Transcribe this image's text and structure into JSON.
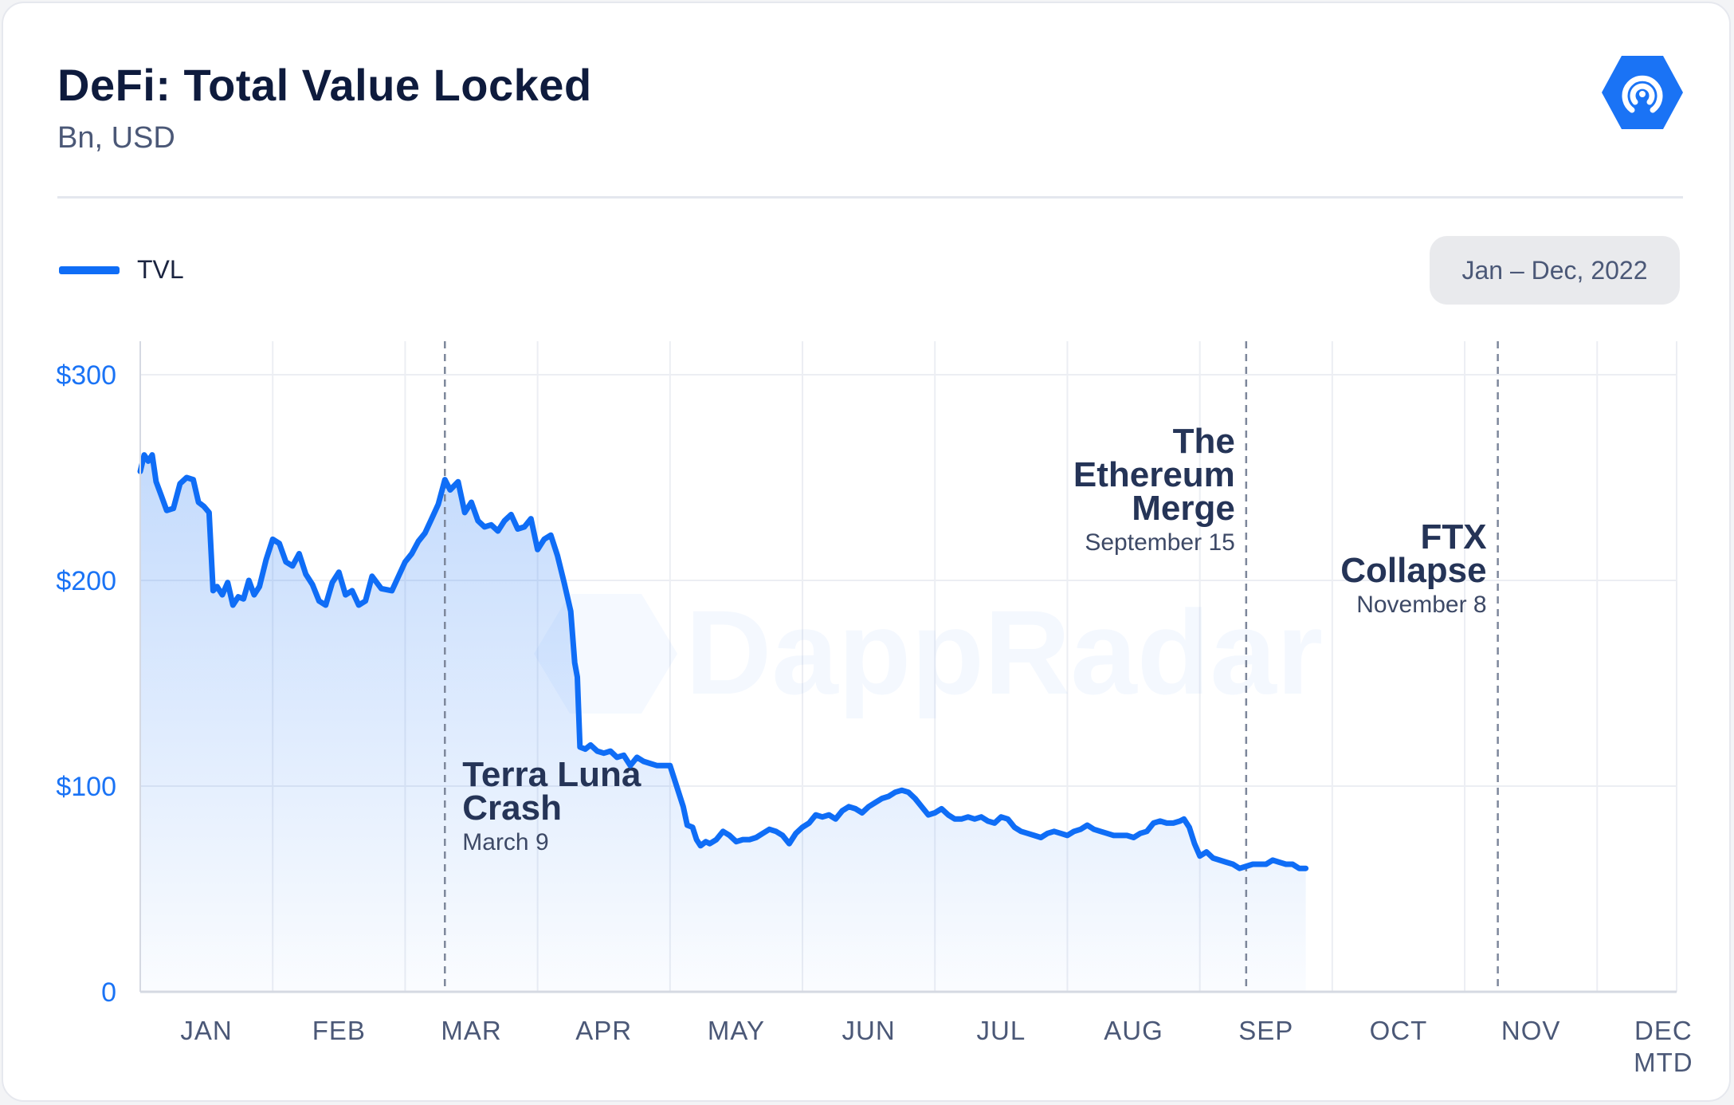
{
  "header": {
    "title": "DeFi: Total Value Locked",
    "subtitle": "Bn, USD",
    "date_range": "Jan – Dec, 2022"
  },
  "legend": {
    "label": "TVL"
  },
  "watermark": {
    "text": "DappRadar"
  },
  "colors": {
    "line": "#0f6df6",
    "axis_tick": "#1a73f5",
    "annotation": "#253457",
    "grid": "#eceef3"
  },
  "chart_data": {
    "type": "area",
    "ylim": [
      0,
      300
    ],
    "grid": true,
    "legend_position": "top-left",
    "y_ticks": [
      {
        "value": 0,
        "label": "0"
      },
      {
        "value": 100,
        "label": "$100"
      },
      {
        "value": 200,
        "label": "$200"
      },
      {
        "value": 300,
        "label": "$300"
      }
    ],
    "x_ticks": [
      {
        "x": 0.5,
        "lines": [
          "JAN"
        ]
      },
      {
        "x": 1.5,
        "lines": [
          "FEB"
        ]
      },
      {
        "x": 2.5,
        "lines": [
          "MAR"
        ]
      },
      {
        "x": 3.5,
        "lines": [
          "APR"
        ]
      },
      {
        "x": 4.5,
        "lines": [
          "MAY"
        ]
      },
      {
        "x": 5.5,
        "lines": [
          "JUN"
        ]
      },
      {
        "x": 6.5,
        "lines": [
          "JUL"
        ]
      },
      {
        "x": 7.5,
        "lines": [
          "AUG"
        ]
      },
      {
        "x": 8.5,
        "lines": [
          "SEP"
        ]
      },
      {
        "x": 9.5,
        "lines": [
          "OCT"
        ]
      },
      {
        "x": 10.5,
        "lines": [
          "NOV"
        ]
      },
      {
        "x": 11.5,
        "lines": [
          "DEC",
          "MTD"
        ]
      }
    ],
    "series": [
      {
        "name": "TVL",
        "points": [
          [
            0.0,
            253
          ],
          [
            0.03,
            261
          ],
          [
            0.06,
            258
          ],
          [
            0.09,
            261
          ],
          [
            0.12,
            248
          ],
          [
            0.16,
            241
          ],
          [
            0.2,
            234
          ],
          [
            0.25,
            235
          ],
          [
            0.3,
            247
          ],
          [
            0.35,
            250
          ],
          [
            0.4,
            249
          ],
          [
            0.44,
            238
          ],
          [
            0.48,
            236
          ],
          [
            0.52,
            233
          ],
          [
            0.55,
            195
          ],
          [
            0.58,
            197
          ],
          [
            0.62,
            193
          ],
          [
            0.66,
            199
          ],
          [
            0.7,
            188
          ],
          [
            0.74,
            192
          ],
          [
            0.78,
            191
          ],
          [
            0.82,
            200
          ],
          [
            0.86,
            193
          ],
          [
            0.9,
            197
          ],
          [
            0.95,
            210
          ],
          [
            1.0,
            220
          ],
          [
            1.05,
            218
          ],
          [
            1.1,
            209
          ],
          [
            1.15,
            207
          ],
          [
            1.2,
            213
          ],
          [
            1.25,
            203
          ],
          [
            1.3,
            198
          ],
          [
            1.35,
            190
          ],
          [
            1.4,
            188
          ],
          [
            1.45,
            199
          ],
          [
            1.5,
            204
          ],
          [
            1.55,
            193
          ],
          [
            1.6,
            195
          ],
          [
            1.65,
            188
          ],
          [
            1.7,
            190
          ],
          [
            1.75,
            202
          ],
          [
            1.82,
            196
          ],
          [
            1.9,
            195
          ],
          [
            1.95,
            202
          ],
          [
            2.0,
            209
          ],
          [
            2.05,
            213
          ],
          [
            2.1,
            219
          ],
          [
            2.15,
            223
          ],
          [
            2.2,
            230
          ],
          [
            2.25,
            237
          ],
          [
            2.3,
            249
          ],
          [
            2.34,
            244
          ],
          [
            2.4,
            248
          ],
          [
            2.45,
            233
          ],
          [
            2.5,
            238
          ],
          [
            2.55,
            229
          ],
          [
            2.6,
            226
          ],
          [
            2.65,
            227
          ],
          [
            2.7,
            224
          ],
          [
            2.75,
            229
          ],
          [
            2.8,
            232
          ],
          [
            2.85,
            225
          ],
          [
            2.9,
            226
          ],
          [
            2.95,
            230
          ],
          [
            3.0,
            215
          ],
          [
            3.05,
            220
          ],
          [
            3.1,
            222
          ],
          [
            3.15,
            212
          ],
          [
            3.2,
            199
          ],
          [
            3.25,
            185
          ],
          [
            3.28,
            160
          ],
          [
            3.3,
            153
          ],
          [
            3.32,
            119
          ],
          [
            3.36,
            118
          ],
          [
            3.4,
            120
          ],
          [
            3.45,
            117
          ],
          [
            3.5,
            116
          ],
          [
            3.55,
            117
          ],
          [
            3.6,
            114
          ],
          [
            3.65,
            115
          ],
          [
            3.7,
            110
          ],
          [
            3.75,
            114
          ],
          [
            3.8,
            112
          ],
          [
            3.85,
            111
          ],
          [
            3.9,
            110
          ],
          [
            3.95,
            110
          ],
          [
            4.0,
            110
          ],
          [
            4.05,
            100
          ],
          [
            4.1,
            90
          ],
          [
            4.13,
            81
          ],
          [
            4.17,
            80
          ],
          [
            4.2,
            74
          ],
          [
            4.23,
            71
          ],
          [
            4.27,
            73
          ],
          [
            4.3,
            72
          ],
          [
            4.35,
            74
          ],
          [
            4.4,
            78
          ],
          [
            4.45,
            76
          ],
          [
            4.5,
            73
          ],
          [
            4.55,
            74
          ],
          [
            4.6,
            74
          ],
          [
            4.65,
            75
          ],
          [
            4.7,
            77
          ],
          [
            4.75,
            79
          ],
          [
            4.8,
            78
          ],
          [
            4.85,
            76
          ],
          [
            4.9,
            72
          ],
          [
            4.95,
            77
          ],
          [
            5.0,
            80
          ],
          [
            5.05,
            82
          ],
          [
            5.1,
            86
          ],
          [
            5.15,
            85
          ],
          [
            5.2,
            86
          ],
          [
            5.25,
            84
          ],
          [
            5.3,
            88
          ],
          [
            5.35,
            90
          ],
          [
            5.4,
            89
          ],
          [
            5.45,
            87
          ],
          [
            5.5,
            90
          ],
          [
            5.55,
            92
          ],
          [
            5.6,
            94
          ],
          [
            5.65,
            95
          ],
          [
            5.7,
            97
          ],
          [
            5.75,
            98
          ],
          [
            5.8,
            97
          ],
          [
            5.85,
            94
          ],
          [
            5.9,
            90
          ],
          [
            5.95,
            86
          ],
          [
            6.0,
            87
          ],
          [
            6.05,
            89
          ],
          [
            6.1,
            86
          ],
          [
            6.15,
            84
          ],
          [
            6.2,
            84
          ],
          [
            6.25,
            85
          ],
          [
            6.3,
            84
          ],
          [
            6.35,
            85
          ],
          [
            6.4,
            83
          ],
          [
            6.45,
            82
          ],
          [
            6.5,
            85
          ],
          [
            6.55,
            84
          ],
          [
            6.6,
            80
          ],
          [
            6.65,
            78
          ],
          [
            6.7,
            77
          ],
          [
            6.75,
            76
          ],
          [
            6.8,
            75
          ],
          [
            6.85,
            77
          ],
          [
            6.9,
            78
          ],
          [
            6.95,
            77
          ],
          [
            7.0,
            76
          ],
          [
            7.05,
            78
          ],
          [
            7.1,
            79
          ],
          [
            7.15,
            81
          ],
          [
            7.2,
            79
          ],
          [
            7.25,
            78
          ],
          [
            7.3,
            77
          ],
          [
            7.35,
            76
          ],
          [
            7.4,
            76
          ],
          [
            7.45,
            76
          ],
          [
            7.5,
            75
          ],
          [
            7.55,
            77
          ],
          [
            7.6,
            78
          ],
          [
            7.65,
            82
          ],
          [
            7.7,
            83
          ],
          [
            7.75,
            82
          ],
          [
            7.8,
            82
          ],
          [
            7.85,
            83
          ],
          [
            7.88,
            84
          ],
          [
            7.92,
            80
          ],
          [
            7.96,
            72
          ],
          [
            8.0,
            66
          ],
          [
            8.05,
            68
          ],
          [
            8.1,
            65
          ],
          [
            8.15,
            64
          ],
          [
            8.2,
            63
          ],
          [
            8.25,
            62
          ],
          [
            8.3,
            60
          ],
          [
            8.35,
            61
          ],
          [
            8.4,
            62
          ],
          [
            8.45,
            62
          ],
          [
            8.5,
            62
          ],
          [
            8.55,
            64
          ],
          [
            8.6,
            63
          ],
          [
            8.65,
            62
          ],
          [
            8.7,
            62
          ],
          [
            8.75,
            60
          ],
          [
            8.8,
            60
          ]
        ]
      }
    ],
    "x_mapping_note_removed": true,
    "annotations": [
      {
        "x": 2.3,
        "title_lines": [
          "Terra Luna",
          "Crash"
        ],
        "date": "March 9",
        "align": "left",
        "position": "bottom"
      },
      {
        "x": 8.35,
        "title_lines": [
          "The",
          "Ethereum",
          "Merge"
        ],
        "date": "September 15",
        "align": "right",
        "position": "top"
      },
      {
        "x": 10.25,
        "title_lines": [
          "FTX",
          "Collapse"
        ],
        "date": "November 8",
        "align": "right",
        "position": "top"
      }
    ]
  }
}
